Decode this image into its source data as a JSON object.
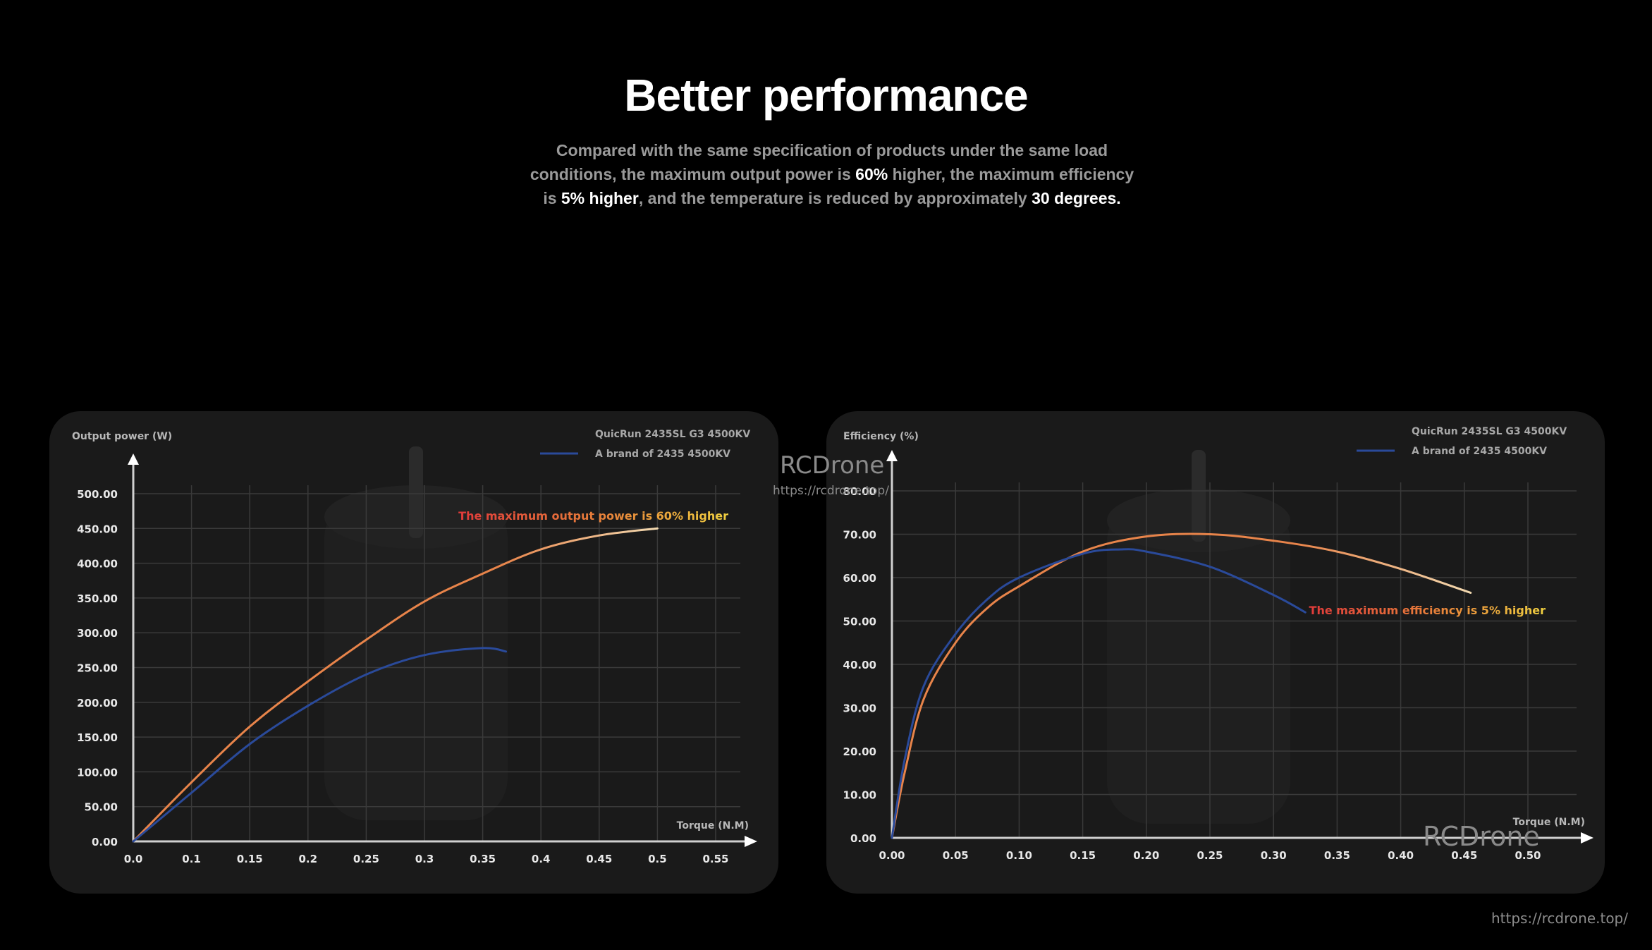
{
  "header": {
    "title": "Better performance",
    "subtitle_parts": [
      {
        "text": "Compared with the same specification of products under the same load conditions, the maximum output power is ",
        "bold": false
      },
      {
        "text": "60%",
        "bold": true
      },
      {
        "text": " higher, the maximum efficiency is ",
        "bold": false
      },
      {
        "text": "5% higher",
        "bold": true
      },
      {
        "text": ", and the temperature is reduced by approximately ",
        "bold": false
      },
      {
        "text": "30 degrees.",
        "bold": true
      }
    ]
  },
  "colors": {
    "background": "#000000",
    "panel": "#1a1a1a",
    "grid": "#3a3a3a",
    "axis": "#d0d0d0",
    "series_hobbywing": "#e8844a",
    "series_hobbywing_end": "#f2d9b0",
    "series_competitor": "#2a4a9a",
    "annotation_start": "#e03a3a",
    "annotation_end": "#f0d040"
  },
  "watermarks": {
    "brand": "RCDrone",
    "url": "https://rcdrone.top/",
    "footer_url": "https://rcdrone.top/"
  },
  "chart_data": [
    {
      "type": "line",
      "title": "",
      "xlabel": "Torque (N.M)",
      "ylabel": "Output power (W)",
      "x_ticks": [
        "0.0",
        "0.1",
        "0.15",
        "0.2",
        "0.25",
        "0.3",
        "0.35",
        "0.4",
        "0.45",
        "0.5",
        "0.55"
      ],
      "y_ticks": [
        "0.00",
        "50.00",
        "100.00",
        "150.00",
        "200.00",
        "250.00",
        "300.00",
        "350.00",
        "400.00",
        "450.00",
        "500.00"
      ],
      "ylim": [
        0,
        500
      ],
      "grid": true,
      "legend_position": "top-right",
      "annotation": "The maximum output power is 60% higher",
      "series": [
        {
          "name": "QuicRun 2435SL G3 4500KV",
          "x": [
            0.0,
            0.1,
            0.15,
            0.2,
            0.25,
            0.3,
            0.35,
            0.4,
            0.45,
            0.5
          ],
          "values": [
            0,
            85,
            165,
            230,
            290,
            345,
            385,
            420,
            440,
            450
          ]
        },
        {
          "name": "A brand of 2435 4500KV",
          "x": [
            0.0,
            0.1,
            0.15,
            0.2,
            0.25,
            0.3,
            0.35,
            0.37
          ],
          "values": [
            0,
            70,
            140,
            195,
            240,
            268,
            278,
            273
          ]
        }
      ]
    },
    {
      "type": "line",
      "title": "",
      "xlabel": "Torque (N.M)",
      "ylabel": "Efficiency (%)",
      "x_ticks": [
        "0.00",
        "0.05",
        "0.10",
        "0.15",
        "0.20",
        "0.25",
        "0.30",
        "0.35",
        "0.40",
        "0.45",
        "0.50"
      ],
      "y_ticks": [
        "0.00",
        "10.00",
        "20.00",
        "30.00",
        "40.00",
        "50.00",
        "60.00",
        "70.00",
        "80.00"
      ],
      "ylim": [
        0,
        80
      ],
      "grid": true,
      "legend_position": "top-right",
      "annotation": "The maximum efficiency is 5% higher",
      "series": [
        {
          "name": "QuicRun 2435SL G3 4500KV",
          "x": [
            0.0,
            0.01,
            0.025,
            0.05,
            0.075,
            0.1,
            0.15,
            0.2,
            0.25,
            0.3,
            0.35,
            0.4,
            0.455
          ],
          "values": [
            0,
            15,
            32,
            45,
            53,
            58,
            66,
            69.5,
            70,
            68.5,
            66,
            62,
            56.5
          ]
        },
        {
          "name": "A brand of 2435 4500KV",
          "x": [
            0.0,
            0.01,
            0.025,
            0.05,
            0.075,
            0.1,
            0.15,
            0.18,
            0.2,
            0.25,
            0.3,
            0.325
          ],
          "values": [
            0,
            18,
            35,
            47,
            55,
            60,
            65.5,
            66.5,
            66,
            62.5,
            56,
            52
          ]
        }
      ]
    }
  ]
}
